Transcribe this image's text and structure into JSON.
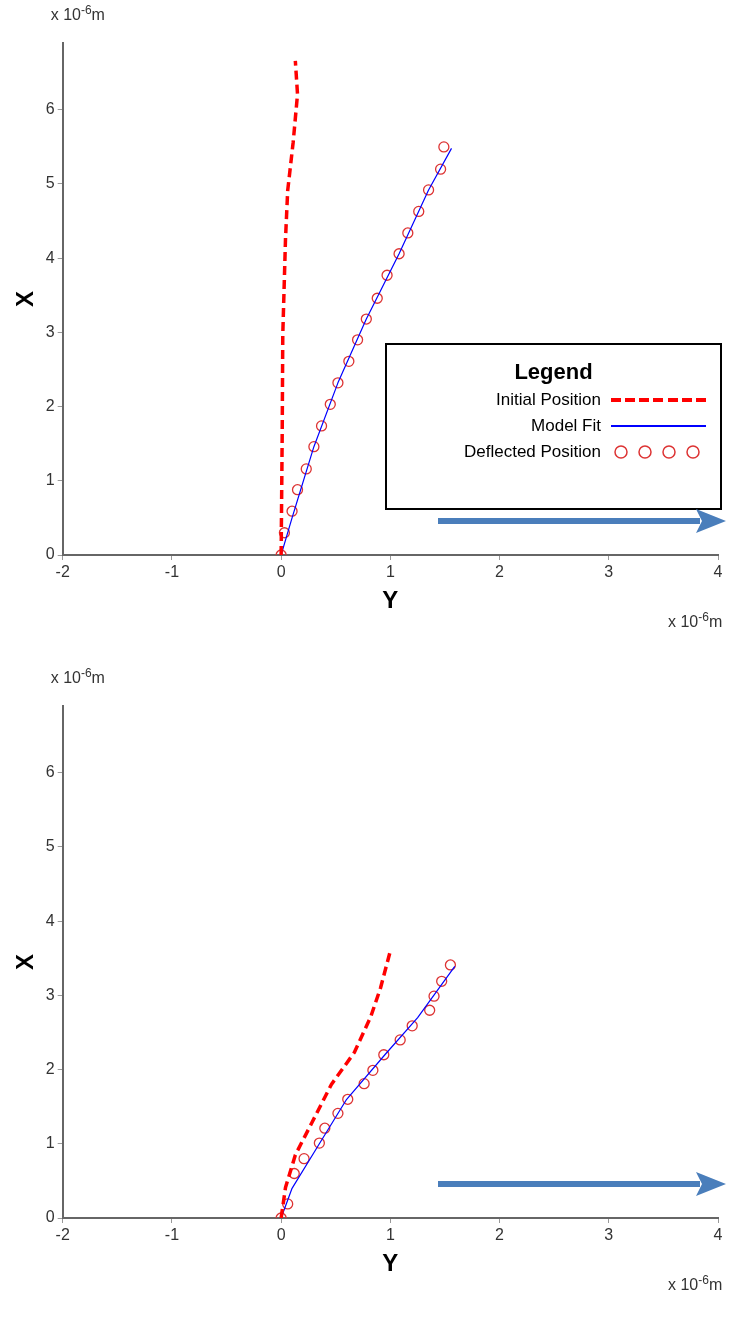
{
  "chart_data": [
    {
      "type": "line",
      "xlabel": "Y",
      "ylabel": "X",
      "legend_title": "Legend",
      "legend": "right",
      "xlim": [
        -2,
        4
      ],
      "xticks": [
        -2,
        -1,
        0,
        1,
        2,
        3,
        4
      ],
      "ylim": [
        0,
        6.9
      ],
      "yticks": [
        0,
        1,
        2,
        3,
        4,
        5,
        6
      ],
      "annotations": [
        "x 10$^{-6}$m",
        "x 10$^{-6}$m"
      ],
      "series": [
        {
          "name": "Initial Position",
          "type": "line",
          "color": "#ff0000",
          "line_style": "dashed",
          "x": [
            0,
            0.01,
            0.015,
            0.04,
            0.06,
            0.11,
            0.15,
            0.13
          ],
          "values": [
            0,
            1.67,
            2.96,
            4.26,
            4.91,
            5.56,
            6.21,
            6.66
          ]
        },
        {
          "name": "Model Fit",
          "type": "line",
          "color": "#0000ff",
          "line_style": "solid",
          "x": [
            0,
            0.1,
            0.3,
            0.52,
            0.78,
            1.08,
            1.35,
            1.56
          ],
          "values": [
            0,
            0.5,
            1.46,
            2.32,
            3.18,
            4.06,
            4.92,
            5.48
          ]
        },
        {
          "name": "Deflected Position",
          "type": "scatter",
          "color": "#dd3333",
          "marker": "circle",
          "x": [
            0,
            0.03,
            0.1,
            0.15,
            0.23,
            0.3,
            0.37,
            0.45,
            0.52,
            0.62,
            0.7,
            0.78,
            0.88,
            0.97,
            1.08,
            1.16,
            1.26,
            1.35,
            1.46,
            1.49
          ],
          "values": [
            0,
            0.3,
            0.59,
            0.88,
            1.16,
            1.46,
            1.74,
            2.03,
            2.32,
            2.61,
            2.9,
            3.18,
            3.46,
            3.77,
            4.06,
            4.34,
            4.63,
            4.92,
            5.2,
            5.5
          ]
        }
      ]
    },
    {
      "type": "line",
      "xlabel": "Y",
      "ylabel": "X",
      "xlim": [
        -2,
        4
      ],
      "xticks": [
        -2,
        -1,
        0,
        1,
        2,
        3,
        4
      ],
      "ylim": [
        0,
        6.9
      ],
      "yticks": [
        0,
        1,
        2,
        3,
        4,
        5,
        6
      ],
      "annotations": [
        "x 10$^{-6}$m",
        "x 10$^{-6}$m"
      ],
      "series": [
        {
          "type": "line",
          "color": "#ff0000",
          "line_style": "dashed",
          "x": [
            0,
            0.04,
            0.13,
            0.28,
            0.46,
            0.67,
            0.82,
            0.91,
            1.0
          ],
          "values": [
            0,
            0.41,
            0.85,
            1.28,
            1.8,
            2.23,
            2.71,
            3.1,
            3.6
          ]
        },
        {
          "type": "line",
          "color": "#0000ff",
          "line_style": "solid",
          "x": [
            0,
            0.1,
            0.35,
            0.6,
            0.95,
            1.25,
            1.59
          ],
          "values": [
            0,
            0.4,
            1.0,
            1.6,
            2.2,
            2.7,
            3.39
          ]
        },
        {
          "type": "scatter",
          "color": "#dd3333",
          "marker": "circle",
          "x": [
            0,
            0.06,
            0.12,
            0.21,
            0.35,
            0.4,
            0.52,
            0.61,
            0.76,
            0.84,
            0.94,
            1.09,
            1.2,
            1.36,
            1.4,
            1.47,
            1.55
          ],
          "values": [
            0,
            0.19,
            0.6,
            0.8,
            1.01,
            1.21,
            1.41,
            1.6,
            1.81,
            1.99,
            2.2,
            2.4,
            2.59,
            2.8,
            2.99,
            3.19,
            3.41
          ]
        }
      ]
    }
  ]
}
